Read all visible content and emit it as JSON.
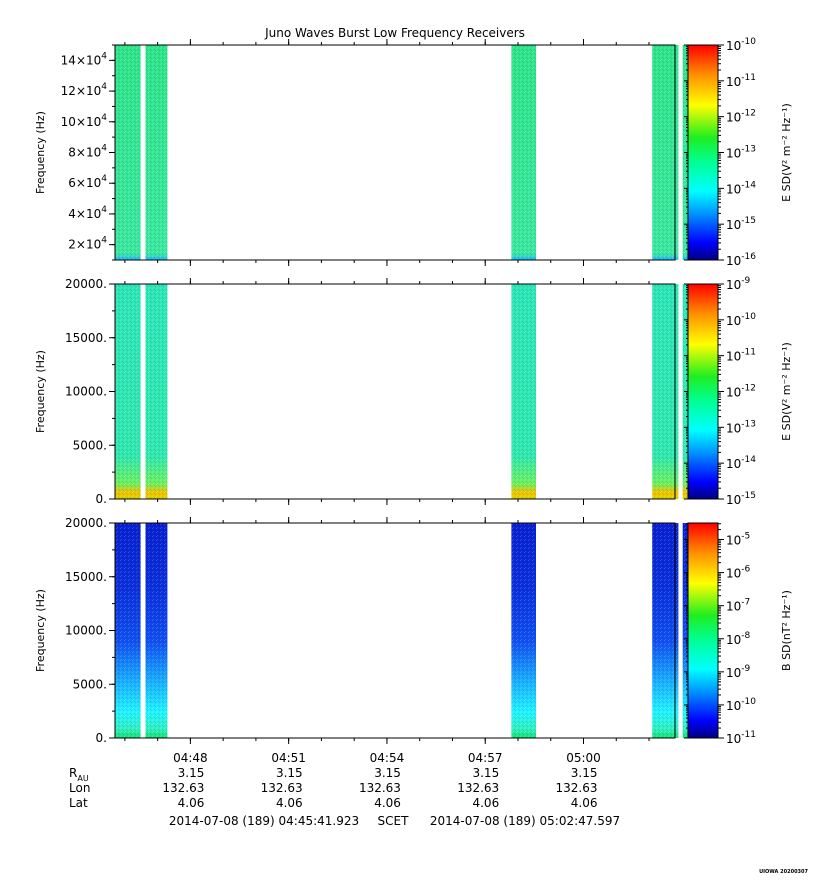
{
  "chart_data": {
    "type": "heatmap",
    "title": "Juno Waves Burst Low Frequency Receivers",
    "x_axis": {
      "unit": "time (SCET, 2014-07-08)",
      "range": [
        "04:45:41.923",
        "05:02:47.597"
      ],
      "tick_labels": [
        "04:48",
        "04:51",
        "04:54",
        "04:57",
        "05:00"
      ],
      "tick_minutes": [
        2.3013,
        5.3013,
        8.3013,
        11.3013,
        14.3013
      ]
    },
    "data_intervals_minutes": [
      [
        0.0,
        0.78
      ],
      [
        0.93,
        1.6
      ],
      [
        12.1,
        12.85
      ],
      [
        16.4,
        17.2
      ],
      [
        17.33,
        18.1
      ]
    ],
    "panels": [
      {
        "ylabel": "Frequency (Hz)",
        "ylim": [
          10000,
          150000
        ],
        "yticks": [
          20000,
          40000,
          60000,
          80000,
          100000,
          120000,
          140000
        ],
        "ytick_labels": [
          {
            "m": "2×10",
            "e": "4"
          },
          {
            "m": "4×10",
            "e": "4"
          },
          {
            "m": "6×10",
            "e": "4"
          },
          {
            "m": "8×10",
            "e": "4"
          },
          {
            "m": "10×10",
            "e": "4"
          },
          {
            "m": "12×10",
            "e": "4"
          },
          {
            "m": "14×10",
            "e": "4"
          }
        ],
        "colorbar": {
          "label": "E SD(V² m⁻² Hz⁻¹)",
          "range_exponents": [
            -16,
            -10
          ],
          "ticks": [
            "-10",
            "-11",
            "-12",
            "-13",
            "-14",
            "-15",
            "-16"
          ]
        },
        "fill_color": "#2ee58a",
        "base_color": "#1fc8ff"
      },
      {
        "ylabel": "Frequency (Hz)",
        "ylim": [
          0,
          20000
        ],
        "yticks": [
          0,
          5000,
          10000,
          15000,
          20000
        ],
        "ytick_labels": [
          "0.",
          "5000.",
          "10000.",
          "15000.",
          "20000."
        ],
        "colorbar": {
          "label": "E SD(V² m⁻² Hz⁻¹)",
          "range_exponents": [
            -15,
            -9
          ],
          "ticks": [
            "-9",
            "-10",
            "-11",
            "-12",
            "-13",
            "-14",
            "-15"
          ]
        },
        "fill_color": "#2de6b4",
        "base_color": "#f2c200"
      },
      {
        "ylabel": "Frequency (Hz)",
        "ylim": [
          0,
          20000
        ],
        "yticks": [
          0,
          5000,
          10000,
          15000,
          20000
        ],
        "ytick_labels": [
          "0.",
          "5000.",
          "10000.",
          "15000.",
          "20000."
        ],
        "colorbar": {
          "label": "B SD(nT² Hz⁻¹)",
          "range_exponents": [
            -11,
            -4.5
          ],
          "ticks": [
            "-5",
            "-6",
            "-7",
            "-8",
            "-9",
            "-10",
            "-11"
          ]
        },
        "fill_color": "#0a28d8",
        "base_color": "#13e07a"
      }
    ],
    "ephemeris": {
      "rows": [
        {
          "label": "R",
          "sub": "AU",
          "values": [
            "3.15",
            "3.15",
            "3.15",
            "3.15",
            "3.15"
          ]
        },
        {
          "label": "Lon",
          "values": [
            "132.63",
            "132.63",
            "132.63",
            "132.63",
            "132.63"
          ]
        },
        {
          "label": "Lat",
          "values": [
            "4.06",
            "4.06",
            "4.06",
            "4.06",
            "4.06"
          ]
        }
      ]
    },
    "time_range_text": {
      "start": "2014-07-08 (189) 04:45:41.923",
      "frame": "SCET",
      "end": "2014-07-08 (189) 05:02:47.597"
    },
    "stamp": "UIOWA 20200307"
  }
}
